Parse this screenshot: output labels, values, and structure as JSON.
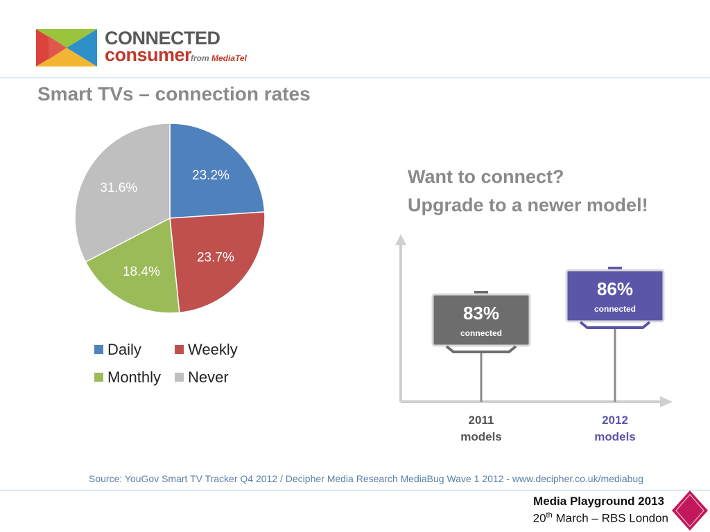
{
  "header": {
    "brand_line1": "CONNECTED",
    "brand_line2": "consumer",
    "brand_from": "from",
    "brand_mediatel": "MediaTel"
  },
  "slide_title": "Smart TVs – connection rates",
  "chart_data": [
    {
      "type": "pie",
      "categories": [
        "Daily",
        "Weekly",
        "Monthly",
        "Never"
      ],
      "values": [
        23.2,
        23.7,
        18.4,
        31.6
      ],
      "labels": [
        "23.2%",
        "23.7%",
        "18.4%",
        "31.6%"
      ],
      "colors": [
        "#4f81bd",
        "#c0504d",
        "#9bbb59",
        "#bfbfbf"
      ],
      "legend_placement": "bottom",
      "title": ""
    },
    {
      "type": "bar",
      "categories": [
        "2011 models",
        "2012 models"
      ],
      "values": [
        83,
        86
      ],
      "value_labels": [
        "83%",
        "86%"
      ],
      "value_caption": "connected",
      "x_labels": [
        {
          "year": "2011",
          "word": "models"
        },
        {
          "year": "2012",
          "word": "models"
        }
      ],
      "colors": [
        "#6d6d6d",
        "#5b56a8"
      ],
      "title": ""
    }
  ],
  "callout": {
    "line1": "Want to connect?",
    "line2": "Upgrade to a newer model!"
  },
  "footer": {
    "source": "Source: YouGov Smart TV Tracker Q4 2012 / Decipher Media Research MediaBug Wave 1 2012 - www.decipher.co.uk/mediabug",
    "event": "Media Playground 2013",
    "date_day": "20",
    "date_suffix": "th",
    "date_rest": " March – RBS London"
  }
}
